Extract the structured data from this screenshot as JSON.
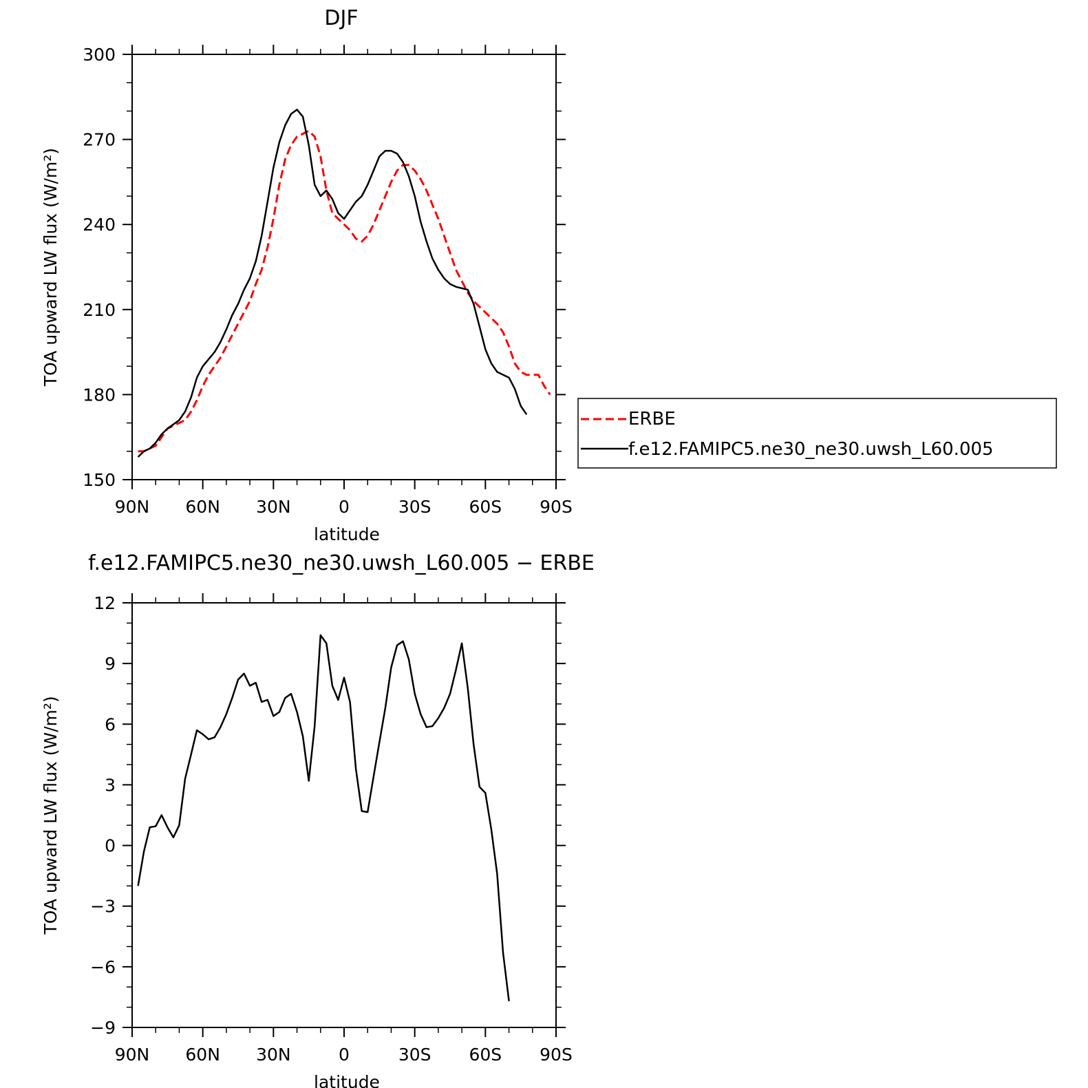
{
  "chart_data": [
    {
      "type": "line",
      "title": "DJF",
      "xlabel": "latitude",
      "ylabel": "TOA upward LW flux (W/m²)",
      "xlim": [
        90,
        -90
      ],
      "ylim": [
        150,
        300
      ],
      "yticks": [
        150,
        180,
        210,
        240,
        270,
        300
      ],
      "xticks": [
        90,
        60,
        30,
        0,
        -30,
        -60,
        -90
      ],
      "xtick_labels": [
        "90N",
        "60N",
        "30N",
        "0",
        "30S",
        "60S",
        "90S"
      ],
      "ytick_labels": [
        "150",
        "180",
        "210",
        "240",
        "270",
        "300"
      ],
      "legend": {
        "placement": "right",
        "entries": [
          "ERBE",
          "f.e12.FAMIPC5.ne30_ne30.uwsh_L60.005"
        ]
      },
      "series": [
        {
          "name": "ERBE",
          "color": "#ff0000",
          "dash": true,
          "points": [
            [
              87.5,
              160
            ],
            [
              85,
              160
            ],
            [
              82.5,
              161
            ],
            [
              80,
              162
            ],
            [
              77.5,
              165
            ],
            [
              75,
              168
            ],
            [
              72.5,
              169
            ],
            [
              70,
              170
            ],
            [
              67.5,
              171
            ],
            [
              65,
              174
            ],
            [
              62.5,
              178
            ],
            [
              60,
              183
            ],
            [
              57.5,
              187
            ],
            [
              55,
              190
            ],
            [
              52.5,
              193
            ],
            [
              50,
              197
            ],
            [
              47.5,
              201
            ],
            [
              45,
              205
            ],
            [
              42.5,
              209
            ],
            [
              40,
              213
            ],
            [
              37.5,
              219
            ],
            [
              35,
              224
            ],
            [
              32.5,
              232
            ],
            [
              30,
              242
            ],
            [
              27.5,
              254
            ],
            [
              25,
              263
            ],
            [
              22.5,
              268
            ],
            [
              20,
              271
            ],
            [
              17.5,
              272
            ],
            [
              15,
              273
            ],
            [
              12.5,
              271
            ],
            [
              10,
              264
            ],
            [
              7.5,
              252
            ],
            [
              5,
              244
            ],
            [
              2.5,
              242
            ],
            [
              0,
              240
            ],
            [
              -2.5,
              238
            ],
            [
              -5,
              235
            ],
            [
              -7.5,
              234
            ],
            [
              -10,
              236
            ],
            [
              -12.5,
              240
            ],
            [
              -15,
              245
            ],
            [
              -17.5,
              250
            ],
            [
              -20,
              255
            ],
            [
              -22.5,
              259
            ],
            [
              -25,
              261
            ],
            [
              -27.5,
              261
            ],
            [
              -30,
              259
            ],
            [
              -32.5,
              256
            ],
            [
              -35,
              252
            ],
            [
              -37.5,
              247
            ],
            [
              -40,
              242
            ],
            [
              -42.5,
              236
            ],
            [
              -45,
              230
            ],
            [
              -47.5,
              224
            ],
            [
              -50,
              220
            ],
            [
              -52.5,
              216
            ],
            [
              -55,
              213
            ],
            [
              -57.5,
              211
            ],
            [
              -60,
              209
            ],
            [
              -62.5,
              207
            ],
            [
              -65,
              205
            ],
            [
              -67.5,
              202
            ],
            [
              -70,
              197
            ],
            [
              -72.5,
              191
            ],
            [
              -75,
              188
            ],
            [
              -77.5,
              187
            ],
            [
              -80,
              187
            ],
            [
              -82.5,
              187
            ],
            [
              -85,
              183
            ],
            [
              -87.5,
              180
            ]
          ]
        },
        {
          "name": "f.e12.FAMIPC5.ne30_ne30.uwsh_L60.005",
          "color": "#000000",
          "dash": false,
          "points": [
            [
              87.5,
              158
            ],
            [
              85,
              160
            ],
            [
              82.5,
              161
            ],
            [
              80,
              163
            ],
            [
              77.5,
              166
            ],
            [
              75,
              168
            ],
            [
              72.5,
              169.5
            ],
            [
              70,
              171
            ],
            [
              67.5,
              174
            ],
            [
              65,
              179
            ],
            [
              62.5,
              186
            ],
            [
              60,
              190
            ],
            [
              57.5,
              192.5
            ],
            [
              55,
              195
            ],
            [
              52.5,
              198.5
            ],
            [
              50,
              203
            ],
            [
              47.5,
              208
            ],
            [
              45,
              212
            ],
            [
              42.5,
              217
            ],
            [
              40,
              221
            ],
            [
              37.5,
              227
            ],
            [
              35,
              236
            ],
            [
              32.5,
              248
            ],
            [
              30,
              260
            ],
            [
              27.5,
              269
            ],
            [
              25,
              275
            ],
            [
              22.5,
              279
            ],
            [
              20,
              280.5
            ],
            [
              17.5,
              278
            ],
            [
              15,
              268
            ],
            [
              12.5,
              254
            ],
            [
              10,
              250
            ],
            [
              7.5,
              252
            ],
            [
              5,
              249
            ],
            [
              2.5,
              244
            ],
            [
              0,
              242
            ],
            [
              -2.5,
              245
            ],
            [
              -5,
              248
            ],
            [
              -7.5,
              250
            ],
            [
              -10,
              254
            ],
            [
              -12.5,
              259
            ],
            [
              -15,
              264
            ],
            [
              -17.5,
              266
            ],
            [
              -20,
              266
            ],
            [
              -22.5,
              265
            ],
            [
              -25,
              262
            ],
            [
              -27.5,
              257
            ],
            [
              -30,
              250
            ],
            [
              -32.5,
              241
            ],
            [
              -35,
              234
            ],
            [
              -37.5,
              228
            ],
            [
              -40,
              224
            ],
            [
              -42.5,
              221
            ],
            [
              -45,
              219
            ],
            [
              -47.5,
              218
            ],
            [
              -50,
              217.5
            ],
            [
              -52.5,
              217
            ],
            [
              -55,
              212
            ],
            [
              -57.5,
              204
            ],
            [
              -60,
              196
            ],
            [
              -62.5,
              191
            ],
            [
              -65,
              188
            ],
            [
              -67.5,
              187
            ],
            [
              -70,
              186
            ],
            [
              -72.5,
              182
            ],
            [
              -75,
              176
            ],
            [
              -77.5,
              173
            ]
          ]
        }
      ]
    },
    {
      "type": "line",
      "title": "f.e12.FAMIPC5.ne30_ne30.uwsh_L60.005 − ERBE",
      "xlabel": "latitude",
      "ylabel": "TOA upward LW flux (W/m²)",
      "xlim": [
        90,
        -90
      ],
      "ylim": [
        -9,
        12
      ],
      "yticks": [
        -9,
        -6,
        -3,
        0,
        3,
        6,
        9,
        12
      ],
      "xticks": [
        90,
        60,
        30,
        0,
        -30,
        -60,
        -90
      ],
      "xtick_labels": [
        "90N",
        "60N",
        "30N",
        "0",
        "30S",
        "60S",
        "90S"
      ],
      "ytick_labels": [
        "−9",
        "−6",
        "−3",
        "0",
        "3",
        "6",
        "9",
        "12"
      ],
      "series": [
        {
          "color": "#000000",
          "dash": false,
          "points": [
            [
              87.5,
              -2
            ],
            [
              85,
              -0.3
            ],
            [
              82.5,
              0.9
            ],
            [
              80,
              0.95
            ],
            [
              77.5,
              1.5
            ],
            [
              75,
              0.9
            ],
            [
              72.5,
              0.4
            ],
            [
              70,
              1
            ],
            [
              67.5,
              3.3
            ],
            [
              65,
              4.5
            ],
            [
              62.5,
              5.7
            ],
            [
              60,
              5.5
            ],
            [
              57.5,
              5.25
            ],
            [
              55,
              5.35
            ],
            [
              52.5,
              5.85
            ],
            [
              50,
              6.5
            ],
            [
              47.5,
              7.3
            ],
            [
              45,
              8.2
            ],
            [
              42.5,
              8.5
            ],
            [
              40,
              7.9
            ],
            [
              37.5,
              8.05
            ],
            [
              35,
              7.1
            ],
            [
              32.5,
              7.2
            ],
            [
              30,
              6.4
            ],
            [
              27.5,
              6.6
            ],
            [
              25,
              7.3
            ],
            [
              22.5,
              7.5
            ],
            [
              20,
              6.6
            ],
            [
              17.5,
              5.4
            ],
            [
              15,
              3.2
            ],
            [
              12.5,
              5.9
            ],
            [
              10,
              10.4
            ],
            [
              7.5,
              10
            ],
            [
              5,
              7.9
            ],
            [
              2.5,
              7.2
            ],
            [
              0,
              8.3
            ],
            [
              -2.5,
              7.1
            ],
            [
              -5,
              3.8
            ],
            [
              -7.5,
              1.7
            ],
            [
              -10,
              1.65
            ],
            [
              -12.5,
              3.4
            ],
            [
              -15,
              5.1
            ],
            [
              -17.5,
              6.8
            ],
            [
              -20,
              8.8
            ],
            [
              -22.5,
              9.9
            ],
            [
              -25,
              10.1
            ],
            [
              -27.5,
              9.2
            ],
            [
              -30,
              7.5
            ],
            [
              -32.5,
              6.5
            ],
            [
              -35,
              5.85
            ],
            [
              -37.5,
              5.9
            ],
            [
              -40,
              6.3
            ],
            [
              -42.5,
              6.8
            ],
            [
              -45,
              7.5
            ],
            [
              -47.5,
              8.7
            ],
            [
              -50,
              10
            ],
            [
              -52.5,
              7.8
            ],
            [
              -55,
              5
            ],
            [
              -57.5,
              2.9
            ],
            [
              -60,
              2.6
            ],
            [
              -62.5,
              0.8
            ],
            [
              -65,
              -1.4
            ],
            [
              -67.5,
              -5.3
            ],
            [
              -70,
              -7.7
            ]
          ]
        }
      ]
    }
  ]
}
